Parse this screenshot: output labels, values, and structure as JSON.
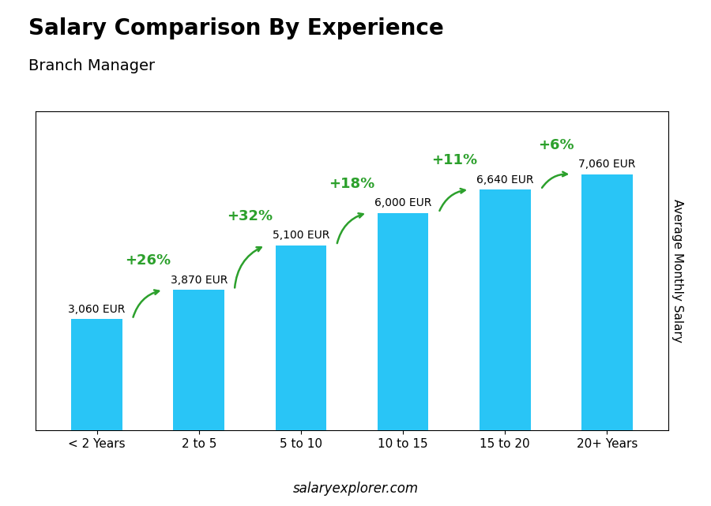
{
  "chart_data": {
    "type": "bar",
    "title": "Salary Comparison By Experience",
    "subtitle": "Branch Manager",
    "ylabel": "Average Monthly Salary",
    "footer": "salaryexplorer.com",
    "categories": [
      "< 2 Years",
      "2 to 5",
      "5 to 10",
      "10 to 15",
      "15 to 20",
      "20+ Years"
    ],
    "values": [
      3060,
      3870,
      5100,
      6000,
      6640,
      7060
    ],
    "value_labels": [
      "3,060 EUR",
      "3,870 EUR",
      "5,100 EUR",
      "6,000 EUR",
      "6,640 EUR",
      "7,060 EUR"
    ],
    "data_labels": true,
    "annotations": [
      "+26%",
      "+32%",
      "+18%",
      "+11%",
      "+6%"
    ],
    "color": "#29c5f6",
    "ylim": [
      0,
      8800
    ],
    "tick_labels": "x",
    "grid": false
  }
}
